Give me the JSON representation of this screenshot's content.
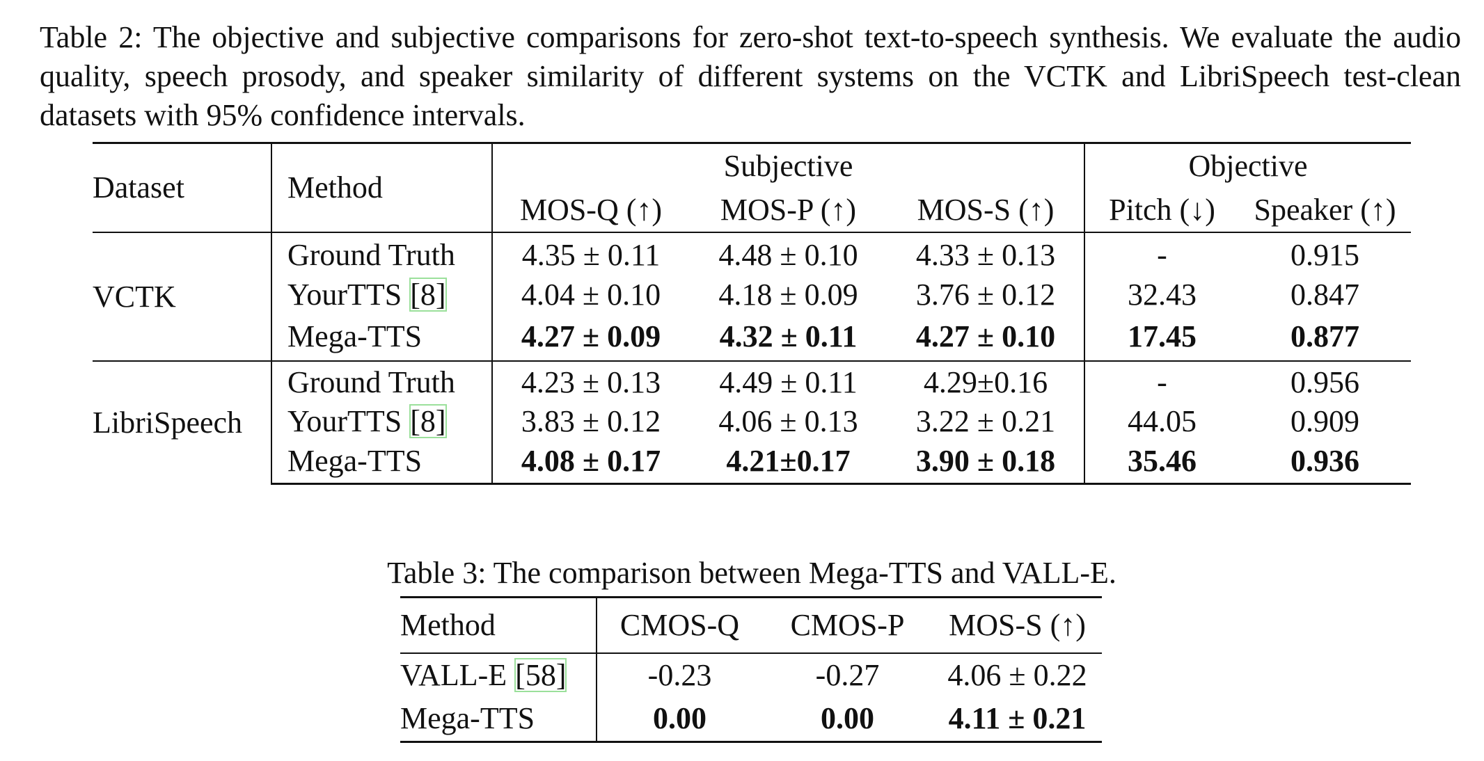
{
  "table2": {
    "caption": "Table 2: The objective and subjective comparisons for zero-shot text-to-speech synthesis. We evaluate the audio quality, speech prosody, and speaker similarity of different systems on the VCTK and LibriSpeech test-clean datasets with 95% confidence intervals.",
    "header": {
      "dataset": "Dataset",
      "method": "Method",
      "subjective": "Subjective",
      "objective": "Objective",
      "metrics": [
        "MOS-Q (↑)",
        "MOS-P (↑)",
        "MOS-S (↑)",
        "Pitch (↓)",
        "Speaker (↑)"
      ]
    },
    "groups": [
      {
        "dataset": "VCTK",
        "rows": [
          {
            "method": "Ground Truth",
            "cells": [
              "4.35 ± 0.11",
              "4.48 ± 0.10",
              "4.33 ± 0.13",
              "-",
              "0.915"
            ],
            "bold": false
          },
          {
            "method": "YourTTS",
            "citation": "[8]",
            "cells": [
              "4.04 ± 0.10",
              "4.18 ± 0.09",
              "3.76 ± 0.12",
              "32.43",
              "0.847"
            ],
            "bold": false
          },
          {
            "method": "Mega-TTS",
            "cells": [
              "4.27 ± 0.09",
              "4.32 ± 0.11",
              "4.27 ± 0.10",
              "17.45",
              "0.877"
            ],
            "bold": true
          }
        ]
      },
      {
        "dataset": "LibriSpeech",
        "rows": [
          {
            "method": "Ground Truth",
            "cells": [
              "4.23 ± 0.13",
              "4.49 ± 0.11",
              "4.29±0.16",
              "-",
              "0.956"
            ],
            "bold": false
          },
          {
            "method": "YourTTS",
            "citation": "[8]",
            "cells": [
              "3.83 ± 0.12",
              "4.06 ± 0.13",
              "3.22 ± 0.21",
              "44.05",
              "0.909"
            ],
            "bold": false
          },
          {
            "method": "Mega-TTS",
            "cells": [
              "4.08 ± 0.17",
              "4.21±0.17",
              "3.90 ± 0.18",
              "35.46",
              "0.936"
            ],
            "bold": true
          }
        ]
      }
    ]
  },
  "table3": {
    "caption": "Table 3: The comparison between Mega-TTS and VALL-E.",
    "header": [
      "Method",
      "CMOS-Q",
      "CMOS-P",
      "MOS-S (↑)"
    ],
    "rows": [
      {
        "method": "VALL-E",
        "citation": "[58]",
        "cells": [
          "-0.23",
          "-0.27",
          "4.06 ± 0.22"
        ],
        "bold": false
      },
      {
        "method": "Mega-TTS",
        "cells": [
          "0.00",
          "0.00",
          "4.11 ± 0.21"
        ],
        "bold": true
      }
    ]
  }
}
